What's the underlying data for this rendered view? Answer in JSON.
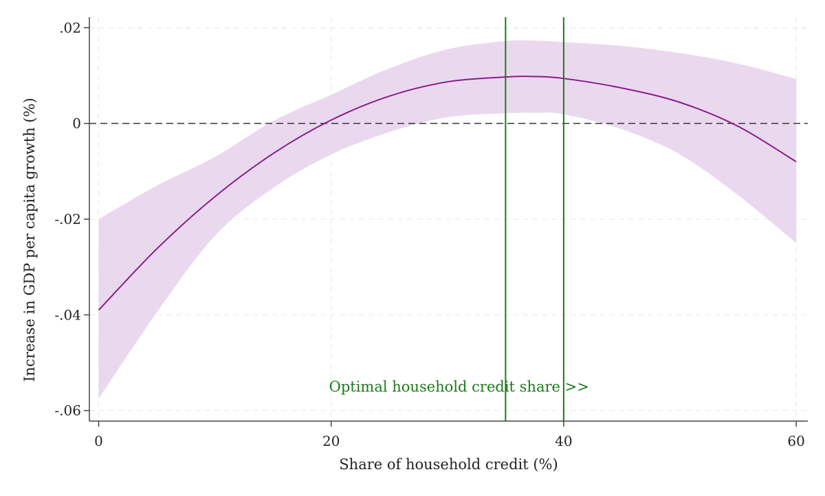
{
  "chart_data": {
    "type": "line",
    "title": "",
    "xlabel": "Share of household credit (%)",
    "ylabel": "Increase in GDP per capita growth (%)",
    "xlim": [
      -0.8,
      61
    ],
    "ylim": [
      -0.0622,
      0.0222
    ],
    "x_ticks": [
      0,
      20,
      40,
      60
    ],
    "x_tick_labels": [
      "0",
      "20",
      "40",
      "60"
    ],
    "y_ticks": [
      0.02,
      0,
      -0.02,
      -0.04,
      -0.06
    ],
    "y_tick_labels": [
      ".02",
      "0",
      "-.02",
      "-.04",
      "-.06"
    ],
    "grid": true,
    "series": [
      {
        "name": "",
        "color": "#8b1a8b",
        "band_color": "#ead9ee",
        "x": [
          0,
          5,
          10,
          15,
          20,
          25,
          30,
          35,
          37.5,
          40,
          45,
          50,
          55,
          60
        ],
        "values": [
          -0.039,
          -0.0262,
          -0.0153,
          -0.0063,
          0.0007,
          0.0057,
          0.0087,
          0.0097,
          0.0098,
          0.0094,
          0.0074,
          0.0044,
          -0.0006,
          -0.008
        ],
        "ci_lower": [
          -0.0575,
          -0.0395,
          -0.0235,
          -0.0135,
          -0.0065,
          -0.0018,
          0.0013,
          0.0021,
          0.0022,
          0.0019,
          -0.0012,
          -0.0065,
          -0.015,
          -0.025
        ],
        "ci_upper": [
          -0.02,
          -0.013,
          -0.007,
          0.0005,
          0.006,
          0.0115,
          0.0155,
          0.0172,
          0.0173,
          0.017,
          0.0162,
          0.0147,
          0.0125,
          0.0093
        ]
      }
    ],
    "reference_lines": {
      "horizontal": [
        {
          "y": 0,
          "style": "dashed",
          "color": "#333333"
        }
      ],
      "vertical": [
        {
          "x": 35,
          "color": "#1a7a1a"
        },
        {
          "x": 40,
          "color": "#1a7a1a"
        }
      ]
    },
    "annotation": {
      "text": "Optimal household credit share >>",
      "x": 31,
      "y": -0.055,
      "color": "#1a7a1a"
    }
  }
}
